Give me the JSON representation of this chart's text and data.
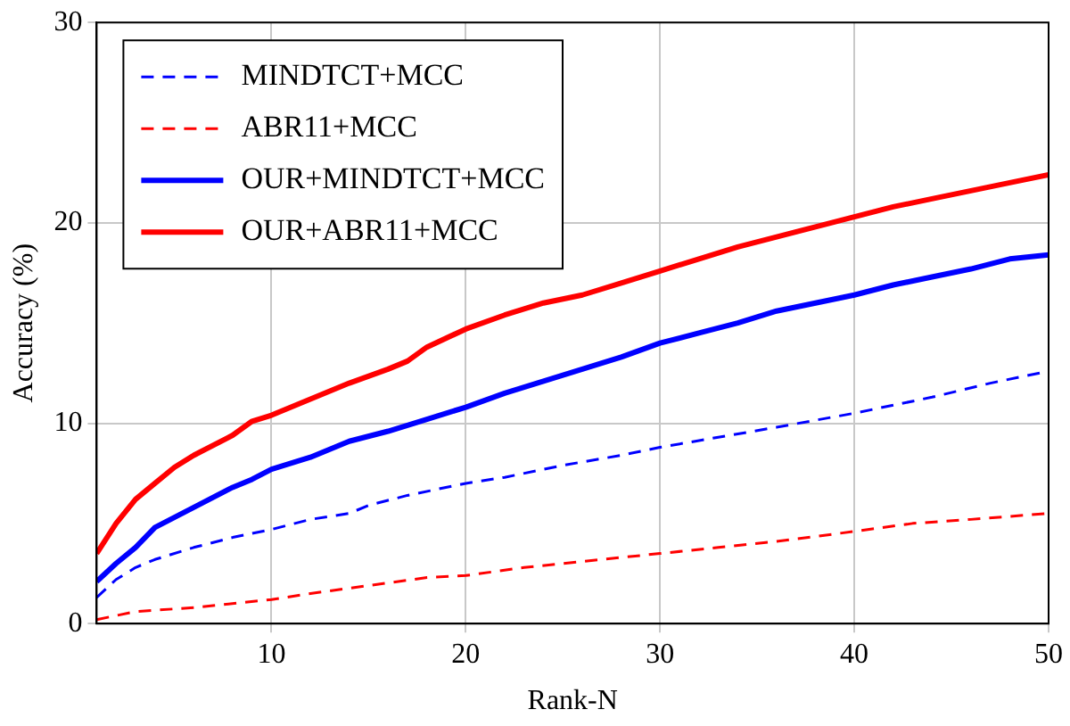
{
  "chart_data": {
    "type": "line",
    "xlabel": "Rank-N",
    "ylabel": "Accuracy (%)",
    "xlim": [
      1,
      50
    ],
    "xticks": [
      10,
      20,
      30,
      40,
      50
    ],
    "ylim": [
      0,
      30
    ],
    "yticks": [
      0,
      10,
      20,
      30
    ],
    "grid": true,
    "legend": "top left",
    "marker": "none",
    "series": [
      {
        "name": "MINDTCT+MCC",
        "color": "#0000ff",
        "line_style": "dashed",
        "x": [
          1,
          2,
          3,
          4,
          6,
          8,
          10,
          12,
          14,
          15,
          17,
          20,
          22,
          25,
          28,
          30,
          33,
          36,
          40,
          44,
          47,
          50
        ],
        "values": [
          1.3,
          2.2,
          2.8,
          3.2,
          3.8,
          4.3,
          4.7,
          5.2,
          5.5,
          5.9,
          6.4,
          7.0,
          7.3,
          7.9,
          8.4,
          8.8,
          9.3,
          9.8,
          10.5,
          11.3,
          12.0,
          12.6
        ]
      },
      {
        "name": "ABR11+MCC",
        "color": "#ff0000",
        "line_style": "dashed",
        "x": [
          1,
          3,
          6,
          10,
          12,
          15,
          18,
          20,
          23,
          26,
          30,
          33,
          36,
          40,
          43,
          46,
          50
        ],
        "values": [
          0.2,
          0.6,
          0.8,
          1.2,
          1.5,
          1.9,
          2.3,
          2.4,
          2.8,
          3.1,
          3.5,
          3.8,
          4.1,
          4.6,
          5.0,
          5.2,
          5.5
        ]
      },
      {
        "name": "OUR+MINDTCT+MCC",
        "color": "#0000ff",
        "line_style": "solid",
        "x": [
          1,
          2,
          3,
          4,
          5,
          6,
          8,
          9,
          10,
          12,
          14,
          16,
          18,
          20,
          22,
          24,
          26,
          28,
          30,
          32,
          34,
          36,
          38,
          40,
          42,
          44,
          46,
          48,
          50
        ],
        "values": [
          2.1,
          3.0,
          3.8,
          4.8,
          5.3,
          5.8,
          6.8,
          7.2,
          7.7,
          8.3,
          9.1,
          9.6,
          10.2,
          10.8,
          11.5,
          12.1,
          12.7,
          13.3,
          14.0,
          14.5,
          15.0,
          15.6,
          16.0,
          16.4,
          16.9,
          17.3,
          17.7,
          18.2,
          18.4
        ]
      },
      {
        "name": "OUR+ABR11+MCC",
        "color": "#ff0000",
        "line_style": "solid",
        "x": [
          1,
          2,
          3,
          4,
          5,
          6,
          8,
          9,
          10,
          12,
          14,
          16,
          17,
          18,
          20,
          22,
          24,
          26,
          28,
          30,
          32,
          34,
          36,
          38,
          40,
          42,
          44,
          46,
          48,
          50
        ],
        "values": [
          3.5,
          5.0,
          6.2,
          7.0,
          7.8,
          8.4,
          9.4,
          10.1,
          10.4,
          11.2,
          12.0,
          12.7,
          13.1,
          13.8,
          14.7,
          15.4,
          16.0,
          16.4,
          17.0,
          17.6,
          18.2,
          18.8,
          19.3,
          19.8,
          20.3,
          20.8,
          21.2,
          21.6,
          22.0,
          22.4
        ]
      }
    ]
  }
}
